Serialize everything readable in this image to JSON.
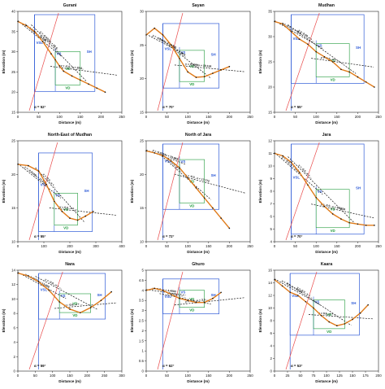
{
  "colors": {
    "profile_line": "#e07b1a",
    "profile_dots": "#111111",
    "sh_box": "#2f5bd7",
    "vs_box": "#2f5bd7",
    "vd_box": "#1e9a3a",
    "dashed": "#111111",
    "angle_line": "#e94b4b"
  },
  "axis_titles": {
    "x": "Distance (m)",
    "y": "Elevation (m)"
  },
  "chart_data": [
    {
      "type": "line",
      "title": "Gurani",
      "xlim": [
        0,
        250
      ],
      "xticks": [
        0,
        50,
        100,
        150,
        200,
        250
      ],
      "ylim": [
        15,
        40
      ],
      "yticks": [
        15,
        20,
        25,
        30,
        35,
        40
      ],
      "x": [
        0,
        20,
        40,
        60,
        80,
        90,
        100,
        110,
        130,
        150,
        170,
        190,
        210
      ],
      "y": [
        37.5,
        36.5,
        35,
        32.5,
        29.5,
        28,
        26.5,
        25.2,
        24,
        23,
        22,
        21,
        20
      ],
      "fit_equations": [
        "y = -0.0919x + 38.699",
        "y = -0.0322x + 25.9..",
        "y = -0.0...x + 29.6.."
      ],
      "box_labels": [
        "VSL",
        "VS",
        "SH",
        "VD",
        "VD"
      ],
      "angle_label": "α = 52°"
    },
    {
      "type": "line",
      "title": "Sayan",
      "xlim": [
        0,
        250
      ],
      "xticks": [
        0,
        50,
        100,
        150,
        200,
        250
      ],
      "ylim": [
        15,
        30
      ],
      "yticks": [
        15,
        20,
        25,
        30
      ],
      "x": [
        0,
        20,
        40,
        60,
        80,
        100,
        120,
        140,
        160,
        180,
        200
      ],
      "y": [
        26.5,
        27.5,
        26.5,
        25,
        23,
        21,
        20.2,
        20.3,
        20.8,
        21.3,
        21.8
      ],
      "fit_equations": [
        "y = -0.0507x + 29.511",
        "y = -0.0...x + 28.1..",
        "y = 0.0099x + 19.124"
      ],
      "box_labels": [
        "VSL",
        "VS",
        "SH",
        "VD",
        "VD"
      ],
      "angle_label": "α = 70°"
    },
    {
      "type": "line",
      "title": "Mudhan",
      "xlim": [
        0,
        250
      ],
      "xticks": [
        0,
        50,
        100,
        150,
        200,
        250
      ],
      "ylim": [
        15,
        35
      ],
      "yticks": [
        15,
        20,
        25,
        30,
        35
      ],
      "x": [
        0,
        20,
        40,
        60,
        80,
        100,
        120,
        140,
        160,
        180,
        200,
        220,
        240
      ],
      "y": [
        33,
        32.5,
        31,
        29.5,
        28.5,
        27,
        26,
        25,
        23.5,
        23,
        22,
        21,
        20
      ],
      "fit_equations": [
        "y = -0.0...x + 33.8..",
        "y = -0.06..x + ...",
        "y = -0.0...x + ..."
      ],
      "box_labels": [
        "VSL",
        "VS",
        "SH",
        "VD",
        "VD"
      ],
      "angle_label": "α = 55°"
    },
    {
      "type": "line",
      "title": "North-East of Mudhan",
      "xlim": [
        0,
        400
      ],
      "xticks": [
        0,
        100,
        200,
        300,
        400
      ],
      "ylim": [
        10,
        25
      ],
      "yticks": [
        10,
        15,
        20,
        25
      ],
      "x": [
        0,
        40,
        80,
        110,
        140,
        170,
        200,
        230,
        260,
        290
      ],
      "y": [
        21.5,
        21.3,
        20.5,
        18.5,
        16,
        14.5,
        13.5,
        13.2,
        13.8,
        14.5
      ],
      "fit_equations": [
        "y = -0.0149x + 21.938",
        "y = -0.0...x + ...",
        "y = 0.0...x + ..."
      ],
      "box_labels": [
        "VSL",
        "VS",
        "SH",
        "VD",
        "VD"
      ],
      "angle_label": "α = 55°"
    },
    {
      "type": "line",
      "title": "North of Jara",
      "xlim": [
        0,
        250
      ],
      "xticks": [
        0,
        50,
        100,
        150,
        200,
        250
      ],
      "ylim": [
        10,
        25
      ],
      "yticks": [
        10,
        15,
        20,
        25
      ],
      "x": [
        0,
        20,
        40,
        60,
        80,
        100,
        120,
        140,
        160,
        180,
        200
      ],
      "y": [
        23.5,
        23.2,
        22.8,
        22,
        21,
        19.5,
        18,
        16.5,
        15,
        13.5,
        12
      ],
      "fit_equations": [
        "y = -0.0254x + 23.865",
        "y = -0.0...x + ...",
        "y = -0.0...x + 17.772"
      ],
      "box_labels": [
        "VSL",
        "VS",
        "SH",
        "VD",
        "VD"
      ],
      "angle_label": "α = 72°"
    },
    {
      "type": "line",
      "title": "Jara",
      "xlim": [
        0,
        250
      ],
      "xticks": [
        0,
        50,
        100,
        150,
        200,
        250
      ],
      "ylim": [
        4,
        12
      ],
      "yticks": [
        4,
        5,
        6,
        7,
        8,
        9,
        10,
        11,
        12
      ],
      "x": [
        0,
        20,
        40,
        60,
        80,
        100,
        120,
        140,
        160,
        180,
        200,
        220,
        240
      ],
      "y": [
        11,
        10.8,
        10.3,
        9.5,
        8.5,
        7.5,
        6.8,
        6.2,
        5.8,
        5.5,
        5.4,
        5.3,
        5.3
      ],
      "fit_equations": [
        "y = -0.0...x + 11.1..",
        "y = -0.0...x + ...",
        "y = -0.0...x + 5.5959"
      ],
      "box_labels": [
        "VSL",
        "VS",
        "SH",
        "VD",
        "VD"
      ],
      "angle_label": "α = 70°"
    },
    {
      "type": "line",
      "title": "Nara",
      "xlim": [
        0,
        300
      ],
      "xticks": [
        0,
        50,
        100,
        150,
        200,
        250,
        300
      ],
      "ylim": [
        0,
        14
      ],
      "yticks": [
        0,
        2,
        4,
        6,
        8,
        10,
        12,
        14
      ],
      "x": [
        0,
        30,
        60,
        90,
        120,
        150,
        180,
        210,
        240,
        270
      ],
      "y": [
        13.6,
        13.2,
        12.4,
        11.2,
        9.6,
        8.6,
        8.1,
        8.8,
        9.8,
        11
      ],
      "fit_equations": [
        "y = -0.0077x + 13.869",
        "y = -0.0...x + ...",
        "y = -0.0...x + ..."
      ],
      "box_labels": [
        "VSL",
        "VS",
        "SH",
        "VD",
        "VD"
      ],
      "angle_label": "α = 59°"
    },
    {
      "type": "line",
      "title": "Ghuro",
      "xlim": [
        0,
        250
      ],
      "xticks": [
        0,
        50,
        100,
        150,
        200,
        250
      ],
      "ylim": [
        0,
        5
      ],
      "yticks": [
        0,
        0.5,
        1,
        1.5,
        2,
        2.5,
        3,
        3.5,
        4,
        4.5,
        5
      ],
      "x": [
        0,
        20,
        40,
        60,
        80,
        100,
        120,
        140,
        160,
        180
      ],
      "y": [
        4.0,
        4.1,
        4.0,
        3.8,
        3.6,
        3.5,
        3.4,
        3.4,
        3.6,
        3.9
      ],
      "fit_equations": [
        "y = 0.0...x + 4.4003",
        "y = -0.0...x + ...",
        "y = -0.0...x + 3.3..."
      ],
      "box_labels": [
        "VSL",
        "VS",
        "SH",
        "VD",
        "VD"
      ],
      "angle_label": "α = 62°"
    },
    {
      "type": "line",
      "title": "Kaara",
      "xlim": [
        0,
        200
      ],
      "xticks": [
        0,
        25,
        50,
        75,
        100,
        125,
        150,
        175,
        200
      ],
      "ylim": [
        0,
        16
      ],
      "yticks": [
        0,
        2,
        4,
        6,
        8,
        10,
        12,
        14,
        16
      ],
      "x": [
        0,
        15,
        30,
        45,
        60,
        75,
        90,
        105,
        120,
        135,
        150,
        165,
        180
      ],
      "y": [
        14.5,
        13.5,
        12.5,
        12,
        11,
        10,
        8.8,
        7.8,
        7.2,
        7.5,
        8.2,
        9.2,
        10.5
      ],
      "fit_equations": [
        "y = -0.0...x + 14.54",
        "y = -0.0...x + ...",
        "y = 0.0...x + ..."
      ],
      "box_labels": [
        "VSL",
        "VS",
        "SH",
        "VD",
        "VD"
      ],
      "angle_label": "α = 53°"
    }
  ]
}
